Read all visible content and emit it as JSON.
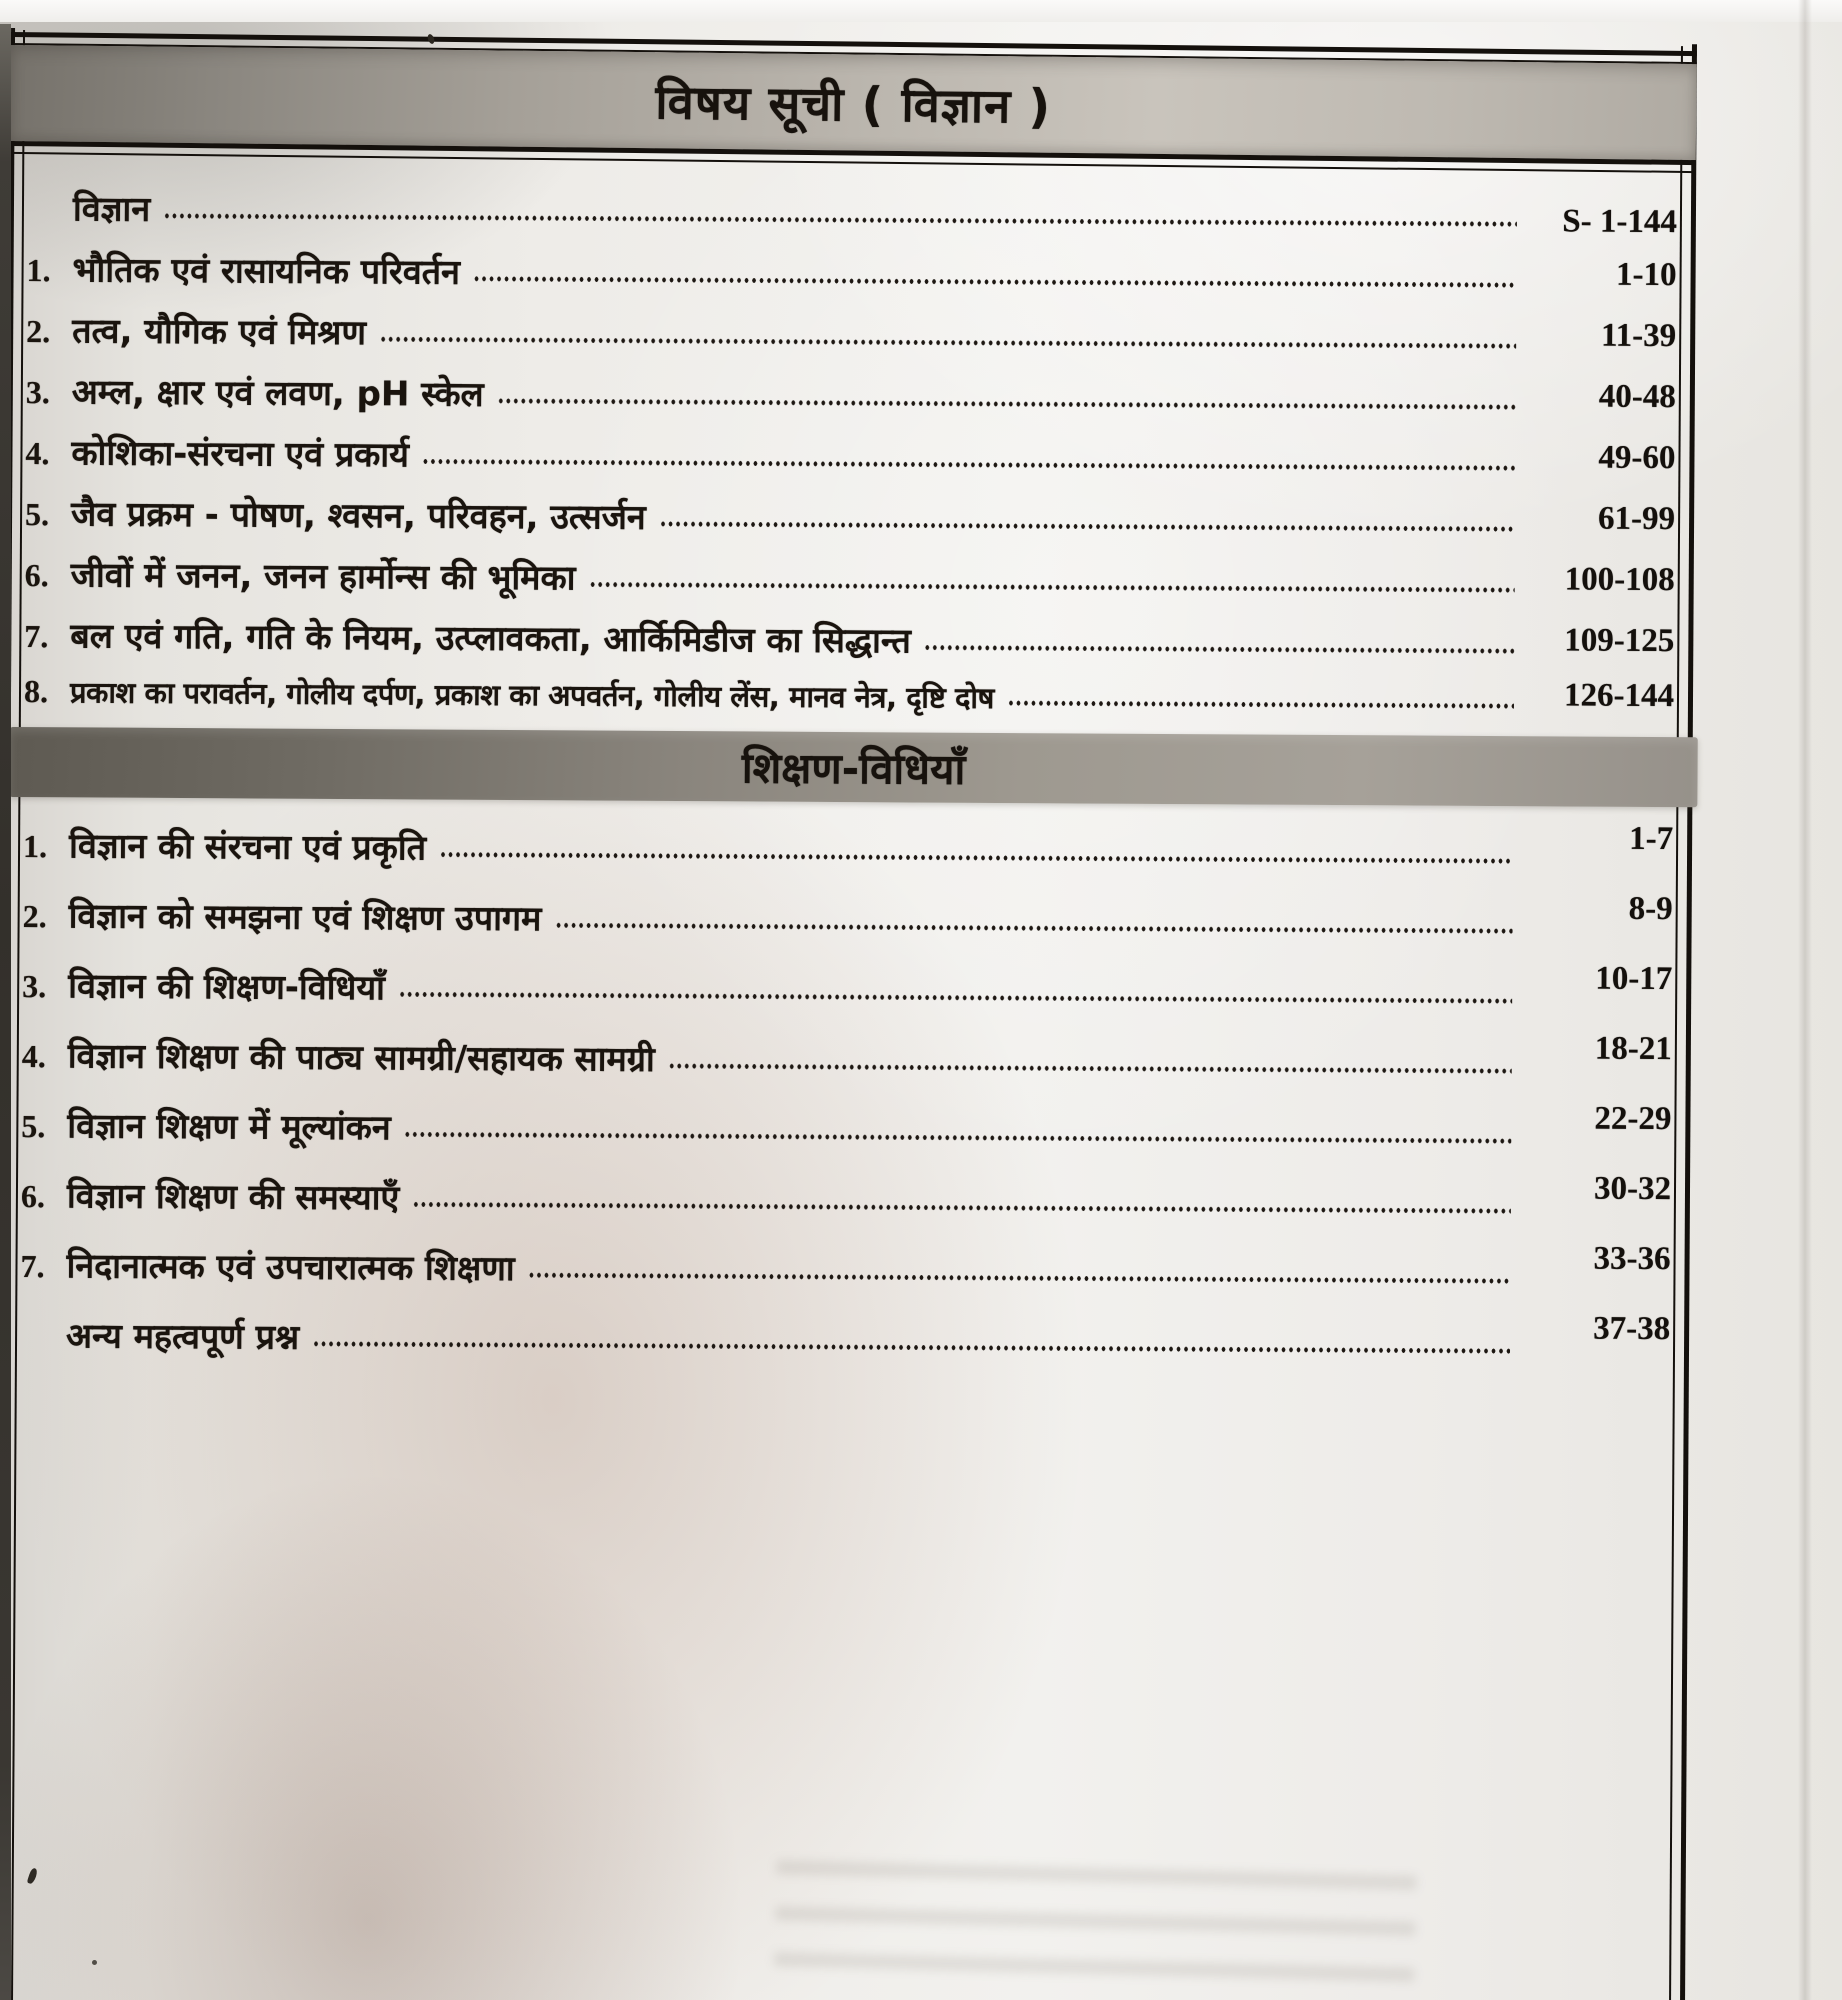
{
  "title": "विषय सूची ( विज्ञान )",
  "section1": {
    "intro": {
      "num": "",
      "label": "विज्ञान",
      "pages": "S- 1-144"
    },
    "items": [
      {
        "num": "1.",
        "title": "भौतिक एवं रासायनिक परिवर्तन",
        "pages": "1-10"
      },
      {
        "num": "2.",
        "title": "तत्व, यौगिक एवं मिश्रण",
        "pages": "11-39"
      },
      {
        "num": "3.",
        "title": "अम्ल, क्षार एवं लवण, pH स्केल",
        "pages": "40-48"
      },
      {
        "num": "4.",
        "title": "कोशिका-संरचना एवं प्रकार्य",
        "pages": "49-60"
      },
      {
        "num": "5.",
        "title": "जैव प्रक्रम - पोषण, श्वसन, परिवहन, उत्सर्जन",
        "pages": "61-99"
      },
      {
        "num": "6.",
        "title": "जीवों में जनन, जनन हार्मोन्स की भूमिका",
        "pages": "100-108"
      },
      {
        "num": "7.",
        "title": "बल एवं गति, गति के नियम, उत्प्लावकता, आर्किमिडीज का सिद्धान्त",
        "pages": "109-125"
      },
      {
        "num": "8.",
        "title": "प्रकाश का परावर्तन, गोलीय दर्पण, प्रकाश का अपवर्तन, गोलीय लेंस, मानव नेत्र, दृष्टि दोष",
        "pages": "126-144"
      }
    ]
  },
  "section2": {
    "heading": "शिक्षण-विधियाँ",
    "items": [
      {
        "num": "1.",
        "title": "विज्ञान की संरचना एवं प्रकृति",
        "pages": "1-7"
      },
      {
        "num": "2.",
        "title": "विज्ञान को समझना एवं शिक्षण उपागम",
        "pages": "8-9"
      },
      {
        "num": "3.",
        "title": "विज्ञान की शिक्षण-विधियाँ",
        "pages": "10-17"
      },
      {
        "num": "4.",
        "title": "विज्ञान शिक्षण की पाठ्य सामग्री/सहायक सामग्री",
        "pages": "18-21"
      },
      {
        "num": "5.",
        "title": "विज्ञान शिक्षण में मूल्यांकन",
        "pages": "22-29"
      },
      {
        "num": "6.",
        "title": "विज्ञान शिक्षण की समस्याएँ",
        "pages": "30-32"
      },
      {
        "num": "7.",
        "title": "निदानात्मक एवं उपचारात्मक शिक्षणा",
        "pages": "33-36"
      },
      {
        "num": "",
        "title": "अन्य महत्वपूर्ण प्रश्न",
        "pages": "37-38"
      }
    ]
  },
  "colors": {
    "ink": "#17120d",
    "band": "#9b968e",
    "paper": "#edebe7"
  }
}
